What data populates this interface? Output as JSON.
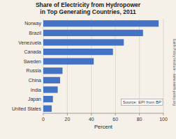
{
  "chart_data": {
    "type": "bar",
    "orientation": "horizontal",
    "title": "Share of Electricity from Hydropower\nin Top Generating Countries, 2011",
    "categories": [
      "United States",
      "Japan",
      "India",
      "China",
      "Russia",
      "Sweden",
      "Canada",
      "Venezuela",
      "Brazil",
      "Norway"
    ],
    "values": [
      7,
      8,
      12,
      14,
      16,
      42,
      58,
      67,
      83,
      96
    ],
    "color": "#4472C4",
    "xlabel": "Percent",
    "xlim": [
      0,
      100
    ],
    "xticks": [
      0,
      20,
      40,
      60,
      80,
      100
    ],
    "grid": true,
    "annotations": [
      "Source: EPI from BP",
      "Earth Policy Institute - www.earth-policy.org"
    ]
  }
}
